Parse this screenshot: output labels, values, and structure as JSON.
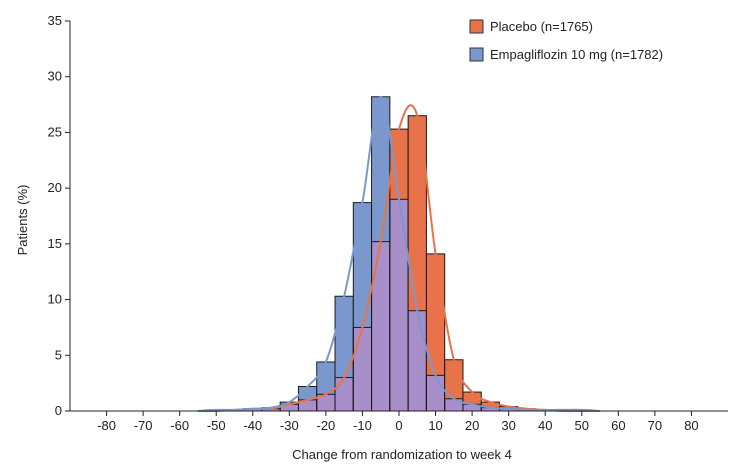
{
  "chart_data": {
    "type": "bar",
    "xlabel": "Change from randomization to week 4",
    "ylabel": "Patients (%)",
    "xlim": [
      -90,
      90
    ],
    "ylim": [
      0,
      35
    ],
    "x_ticks": [
      -80,
      -70,
      -60,
      -50,
      -40,
      -30,
      -20,
      -10,
      0,
      10,
      20,
      30,
      40,
      50,
      60,
      70,
      80
    ],
    "y_ticks": [
      0,
      5,
      10,
      15,
      20,
      25,
      30,
      35
    ],
    "bin_width": 5,
    "bin_centers": [
      -50,
      -45,
      -40,
      -35,
      -30,
      -25,
      -20,
      -15,
      -10,
      -5,
      0,
      5,
      10,
      15,
      20,
      25,
      30,
      35,
      40,
      45,
      50
    ],
    "legend_position": "top-right",
    "grid": false,
    "series": [
      {
        "name": "Placebo (n=1765)",
        "color": "#E8734A",
        "values": [
          0,
          0.1,
          0.2,
          0.2,
          0.6,
          1.0,
          1.5,
          3.0,
          7.5,
          15.2,
          25.3,
          26.5,
          14.1,
          4.6,
          1.7,
          0.8,
          0.4,
          0.2,
          0.1,
          0.1,
          0.1
        ]
      },
      {
        "name": "Empagliflozin 10 mg (n=1782)",
        "color": "#7B98CE",
        "values": [
          0.1,
          0.1,
          0.2,
          0.3,
          0.8,
          2.2,
          4.4,
          10.3,
          18.7,
          28.2,
          19.0,
          9.0,
          3.2,
          1.1,
          0.6,
          0.3,
          0.2,
          0.1,
          0.1,
          0,
          0
        ]
      }
    ],
    "overlap_color": "#A98FC9"
  }
}
